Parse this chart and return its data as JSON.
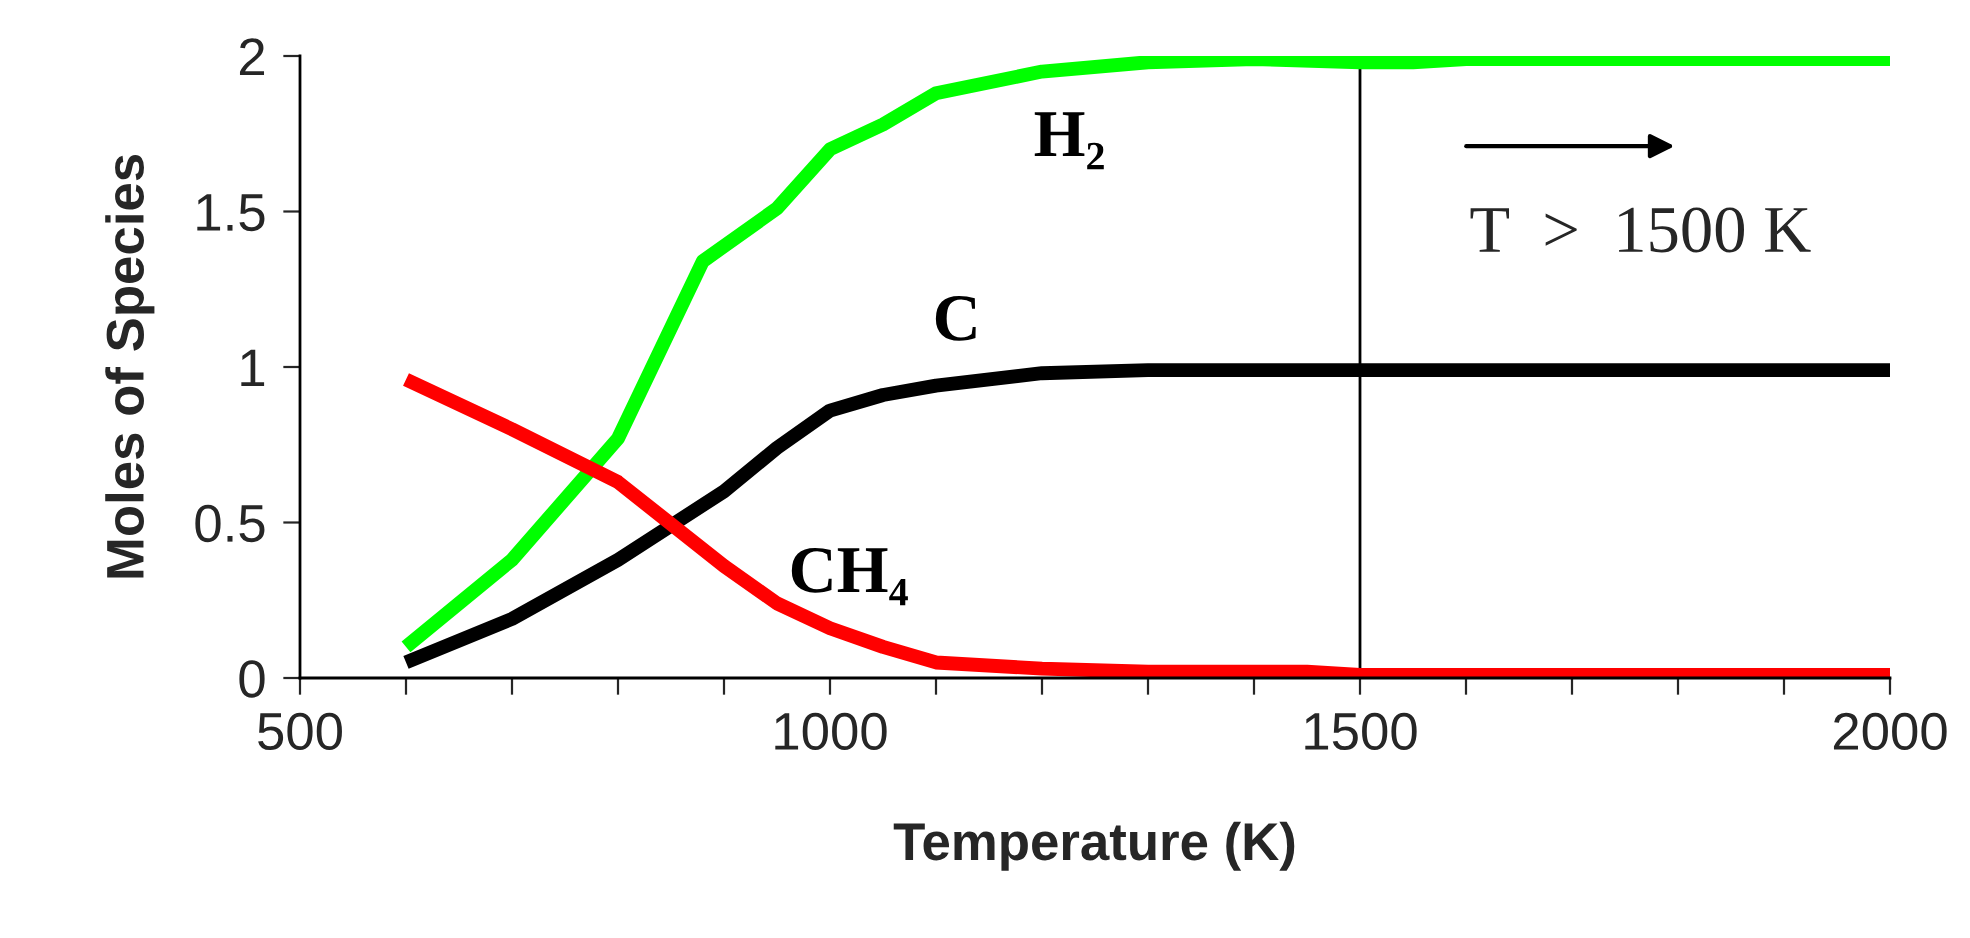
{
  "chart_data": {
    "type": "line",
    "xlabel": "Temperature (K)",
    "ylabel": "Moles of Species",
    "xlim": [
      500,
      2000
    ],
    "ylim": [
      0,
      2
    ],
    "xticks": [
      500,
      {
        "value": 600,
        "label": null
      },
      {
        "value": 700,
        "label": null
      },
      {
        "value": 800,
        "label": null
      },
      {
        "value": 900,
        "label": null
      },
      1000,
      {
        "value": 1100,
        "label": null
      },
      {
        "value": 1200,
        "label": null
      },
      {
        "value": 1300,
        "label": null
      },
      {
        "value": 1400,
        "label": null
      },
      1500,
      {
        "value": 1600,
        "label": null
      },
      {
        "value": 1700,
        "label": null
      },
      {
        "value": 1800,
        "label": null
      },
      {
        "value": 1900,
        "label": null
      },
      2000
    ],
    "yticks": [
      0,
      0.5,
      1,
      1.5,
      2
    ],
    "grid": false,
    "legend": false,
    "marker": "none",
    "line_style": "solid",
    "series": [
      {
        "name": "H₂",
        "color": "#00ff00",
        "x": [
          600,
          700,
          800,
          880,
          950,
          1000,
          1050,
          1100,
          1200,
          1300,
          1400,
          1500,
          1550,
          1600,
          2000
        ],
        "values": [
          0.1,
          0.38,
          0.77,
          1.34,
          1.51,
          1.7,
          1.78,
          1.88,
          1.95,
          1.98,
          1.99,
          1.98,
          1.98,
          1.99,
          1.99
        ]
      },
      {
        "name": "C",
        "color": "#000000",
        "x": [
          600,
          700,
          800,
          900,
          950,
          1000,
          1050,
          1100,
          1200,
          1300,
          1400,
          1500,
          2000
        ],
        "values": [
          0.05,
          0.19,
          0.38,
          0.6,
          0.74,
          0.86,
          0.91,
          0.94,
          0.98,
          0.99,
          0.99,
          0.99,
          0.99
        ]
      },
      {
        "name": "CH₄",
        "color": "#ff0000",
        "x": [
          600,
          700,
          800,
          900,
          950,
          1000,
          1050,
          1100,
          1200,
          1300,
          1450,
          1500,
          2000
        ],
        "values": [
          0.96,
          0.8,
          0.63,
          0.36,
          0.24,
          0.16,
          0.1,
          0.05,
          0.03,
          0.02,
          0.02,
          0.01,
          0.01
        ]
      }
    ],
    "ref_lines": [
      {
        "axis": "x",
        "value": 1500,
        "color": "#000000"
      }
    ],
    "annotations": [
      "T  >  1500 K"
    ]
  }
}
